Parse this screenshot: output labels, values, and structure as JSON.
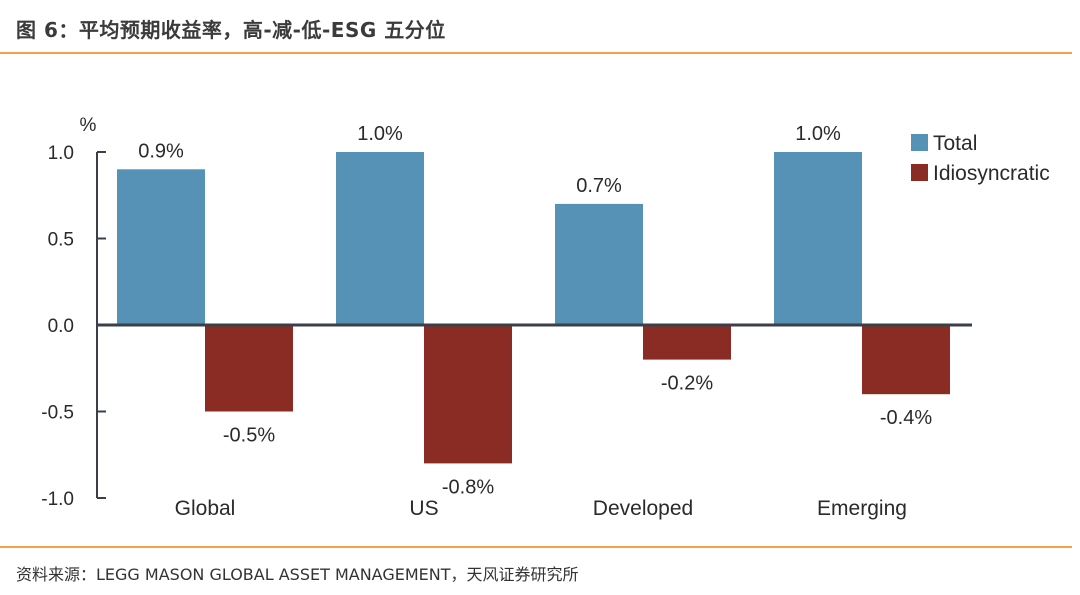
{
  "header": {
    "title": "图 6：平均预期收益率，高-减-低-ESG 五分位"
  },
  "footer": {
    "source": "资料来源：LEGG MASON GLOBAL ASSET MANAGEMENT，天风证券研究所"
  },
  "colors": {
    "total": "#5592b6",
    "idiosyncratic": "#8b2c24",
    "accent": "#f2a24a",
    "axis": "#3a3f4a"
  },
  "chart_data": {
    "type": "bar",
    "title": "",
    "ylabel": "%",
    "ylim": [
      -1.0,
      1.0
    ],
    "yticks": [
      1.0,
      0.5,
      0.0,
      -0.5,
      -1.0
    ],
    "ytick_labels": [
      "1.0",
      "0.5",
      "0.0",
      "-0.5",
      "-1.0"
    ],
    "categories": [
      "Global",
      "US",
      "Developed",
      "Emerging"
    ],
    "series": [
      {
        "name": "Total",
        "values": [
          0.9,
          1.0,
          0.7,
          1.0
        ],
        "labels": [
          "0.9%",
          "1.0%",
          "0.7%",
          "1.0%"
        ]
      },
      {
        "name": "Idiosyncratic",
        "values": [
          -0.5,
          -0.8,
          -0.2,
          -0.4
        ],
        "labels": [
          "-0.5%",
          "-0.8%",
          "-0.2%",
          "-0.4%"
        ]
      }
    ],
    "legend": "top-right",
    "grid": false
  }
}
